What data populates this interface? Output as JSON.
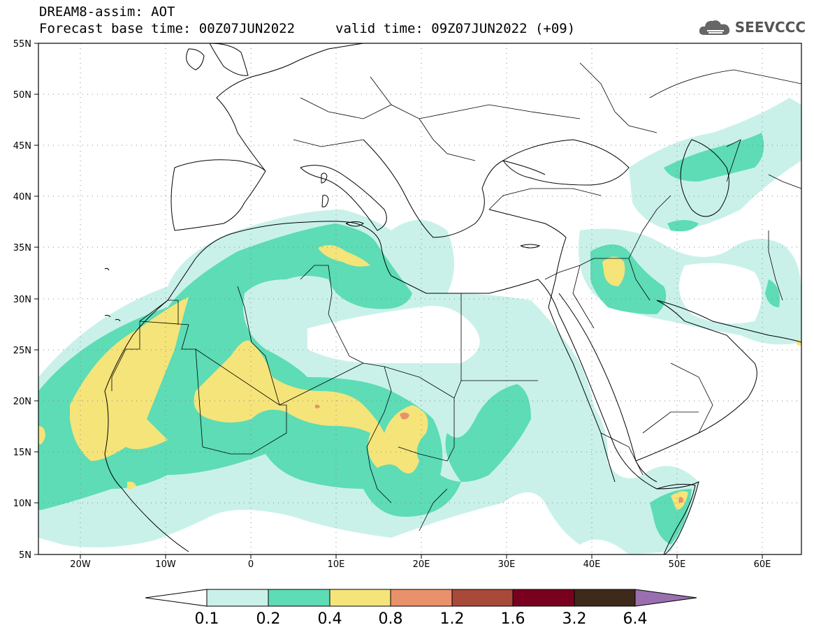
{
  "title": {
    "line1": "DREAM8-assim: AOT",
    "line2": "Forecast base time: 00Z07JUN2022",
    "line2b": "valid time: 09Z07JUN2022 (+09)"
  },
  "logo": {
    "text": "SEEVCCC",
    "icon": "cloud-icon"
  },
  "map": {
    "lon_ticks": [
      "20W",
      "10W",
      "0",
      "10E",
      "20E",
      "30E",
      "40E",
      "50E",
      "60E"
    ],
    "lat_ticks": [
      "55N",
      "50N",
      "45N",
      "40N",
      "35N",
      "30N",
      "25N",
      "20N",
      "15N",
      "10N",
      "5N"
    ]
  },
  "legend": {
    "labels": [
      "0.1",
      "0.2",
      "0.4",
      "0.8",
      "1.2",
      "1.6",
      "3.2",
      "6.4"
    ],
    "colors": [
      "#ffffff",
      "#c9f1ea",
      "#5ddcb5",
      "#f5e47a",
      "#e8916a",
      "#a8493a",
      "#7a0020",
      "#3d2a1a",
      "#9a6fb0"
    ]
  }
}
